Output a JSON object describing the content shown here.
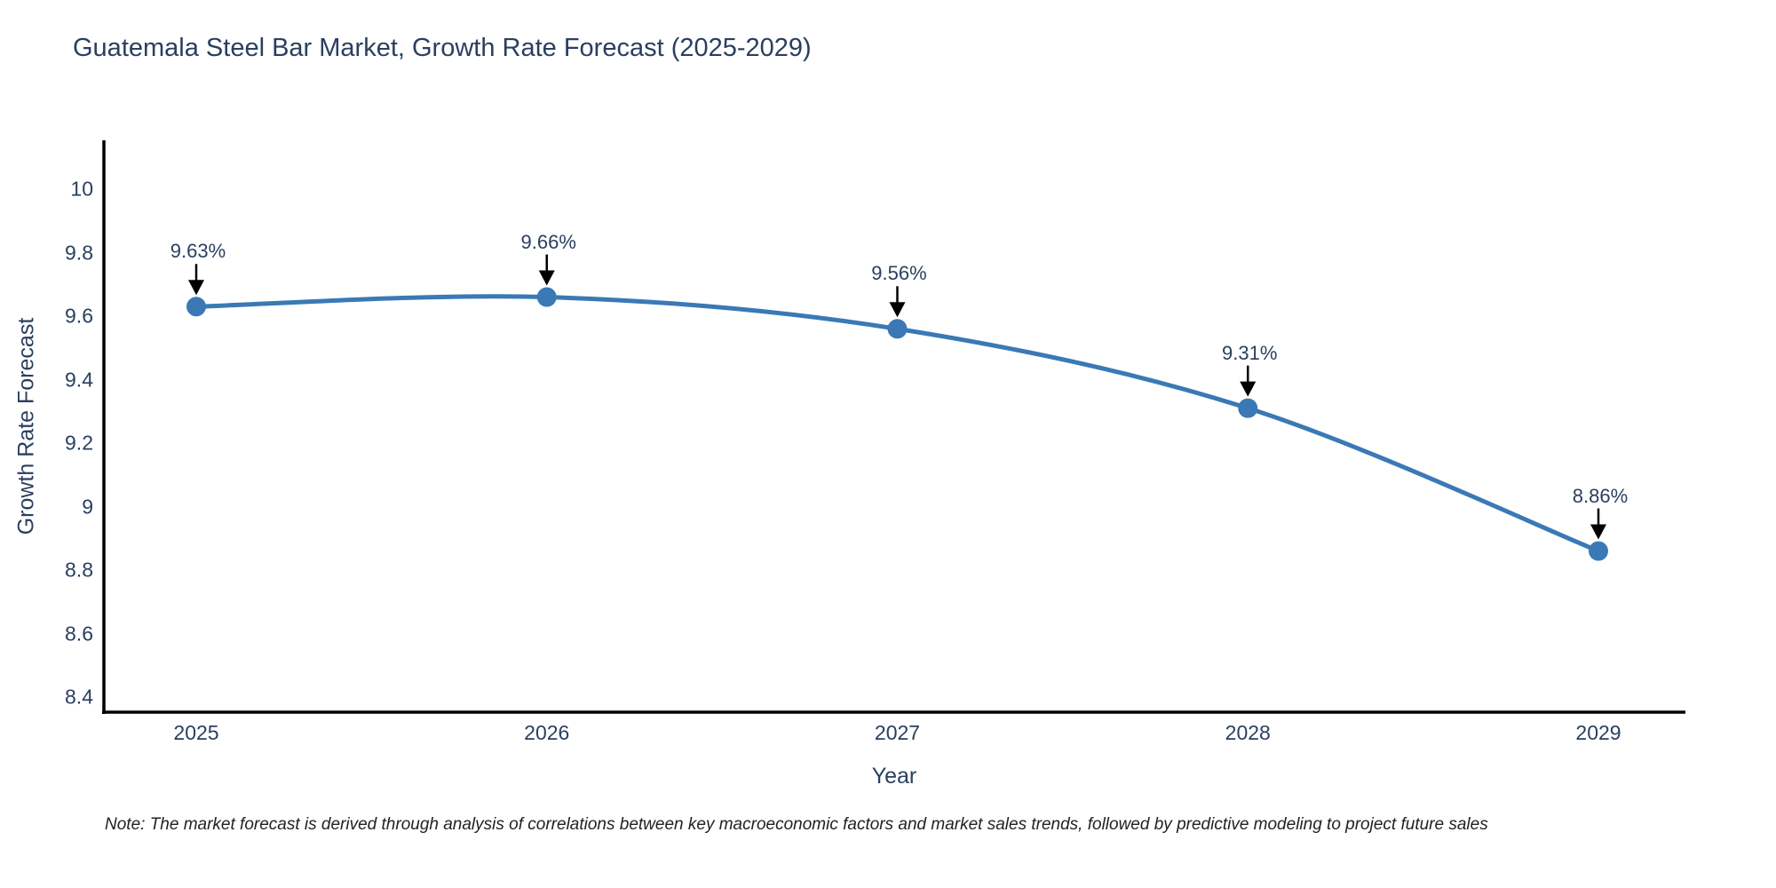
{
  "title": "Guatemala Steel Bar Market, Growth Rate Forecast (2025-2029)",
  "note": "Note: The market forecast is derived through analysis of correlations between key macroeconomic factors and market sales trends, followed by predictive modeling to project future sales",
  "colors": {
    "accent": "#3a79b5",
    "text": "#2a3f5f",
    "axis": "#000000",
    "arrow": "#000000",
    "background": "#ffffff"
  },
  "chart_data": {
    "type": "line",
    "title": "Guatemala Steel Bar Market, Growth Rate Forecast (2025-2029)",
    "xlabel": "Year",
    "ylabel": "Growth Rate Forecast",
    "x": [
      2025,
      2026,
      2027,
      2028,
      2029
    ],
    "series": [
      {
        "name": "Growth Rate Forecast",
        "values": [
          9.63,
          9.66,
          9.56,
          9.31,
          8.86
        ],
        "point_labels": [
          "9.63%",
          "9.66%",
          "9.56%",
          "9.31%",
          "8.86%"
        ]
      }
    ],
    "x_ticks": [
      "2025",
      "2026",
      "2027",
      "2028",
      "2029"
    ],
    "y_ticks": [
      10,
      9.8,
      9.6,
      9.4,
      9.2,
      9,
      8.8,
      8.6,
      8.4
    ],
    "ylim": [
      8.35,
      10.15
    ],
    "grid": false,
    "legend_position": "none",
    "line_shape": "spline",
    "marker_style": "circle",
    "annotations": "value labels with down arrows above each point"
  }
}
